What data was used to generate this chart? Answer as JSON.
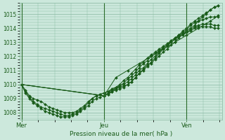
{
  "xlabel": "Pression niveau de la mer( hPa )",
  "bg_color": "#cce8dc",
  "grid_color": "#88b8a0",
  "line_color": "#1a5c1a",
  "vline_color": "#2a6c2a",
  "ylim": [
    1007.5,
    1015.8
  ],
  "yticks": [
    1008,
    1009,
    1010,
    1011,
    1012,
    1013,
    1014,
    1015
  ],
  "day_labels": [
    "Mer",
    "Jeu",
    "Ven"
  ],
  "day_positions": [
    0,
    0.42,
    0.84
  ],
  "vline_positions": [
    0,
    0.42,
    0.84
  ],
  "series": [
    {
      "x": [
        0.0,
        0.02,
        0.04,
        0.06,
        0.08,
        0.1,
        0.12,
        0.14,
        0.16,
        0.18,
        0.2,
        0.22,
        0.24,
        0.26,
        0.28,
        0.3,
        0.32,
        0.34,
        0.36,
        0.38,
        0.4,
        0.42,
        0.44,
        0.46,
        0.48,
        0.5,
        0.52,
        0.54,
        0.56,
        0.58,
        0.6,
        0.62,
        0.64,
        0.66,
        0.68,
        0.7,
        0.72,
        0.74,
        0.76,
        0.78,
        0.8,
        0.82,
        0.84,
        0.86,
        0.88,
        0.9,
        0.92,
        0.94,
        0.96,
        0.98,
        1.0
      ],
      "y": [
        1010.0,
        1009.6,
        1009.2,
        1009.0,
        1008.9,
        1008.8,
        1008.6,
        1008.4,
        1008.3,
        1008.2,
        1008.1,
        1008.0,
        1008.0,
        1008.0,
        1008.1,
        1008.3,
        1008.5,
        1008.8,
        1009.0,
        1009.2,
        1009.3,
        1009.4,
        1009.5,
        1009.6,
        1009.7,
        1009.8,
        1009.9,
        1010.0,
        1010.2,
        1010.5,
        1010.8,
        1011.1,
        1011.4,
        1011.5,
        1011.8,
        1012.0,
        1012.3,
        1012.5,
        1012.8,
        1013.0,
        1013.3,
        1013.6,
        1013.8,
        1014.0,
        1014.2,
        1014.5,
        1014.8,
        1015.0,
        1015.3,
        1015.5,
        1015.6
      ]
    },
    {
      "x": [
        0.0,
        0.02,
        0.04,
        0.06,
        0.08,
        0.1,
        0.12,
        0.14,
        0.16,
        0.18,
        0.2,
        0.22,
        0.24,
        0.26,
        0.28,
        0.3,
        0.32,
        0.34,
        0.36,
        0.38,
        0.4,
        0.42,
        0.44,
        0.46,
        0.48,
        0.5,
        0.52,
        0.54,
        0.56,
        0.58,
        0.6,
        0.62,
        0.64,
        0.66,
        0.68,
        0.7,
        0.72,
        0.74,
        0.76,
        0.78,
        0.8,
        0.82,
        0.84,
        0.86,
        0.88,
        0.9,
        0.92,
        0.94,
        0.96,
        0.98,
        1.0
      ],
      "y": [
        1010.0,
        1009.5,
        1009.1,
        1008.8,
        1008.6,
        1008.4,
        1008.3,
        1008.2,
        1008.1,
        1008.0,
        1007.9,
        1007.8,
        1007.8,
        1007.9,
        1008.0,
        1008.2,
        1008.4,
        1008.7,
        1009.0,
        1009.2,
        1009.3,
        1009.4,
        1009.5,
        1009.7,
        1009.8,
        1009.9,
        1010.0,
        1010.2,
        1010.4,
        1010.7,
        1011.0,
        1011.2,
        1011.5,
        1011.8,
        1012.0,
        1012.3,
        1012.6,
        1012.8,
        1013.1,
        1013.3,
        1013.5,
        1013.8,
        1014.0,
        1014.3,
        1014.5,
        1014.7,
        1014.9,
        1015.1,
        1015.3,
        1015.5,
        1015.6
      ]
    },
    {
      "x": [
        0.0,
        0.02,
        0.04,
        0.06,
        0.08,
        0.1,
        0.12,
        0.14,
        0.16,
        0.18,
        0.2,
        0.22,
        0.24,
        0.26,
        0.28,
        0.3,
        0.32,
        0.34,
        0.36,
        0.38,
        0.4,
        0.42,
        0.44,
        0.46,
        0.48,
        0.5,
        0.52,
        0.54,
        0.56,
        0.58,
        0.6,
        0.62,
        0.64,
        0.66,
        0.68,
        0.7,
        0.72,
        0.74,
        0.76,
        0.78,
        0.8,
        0.82,
        0.84,
        0.86,
        0.88,
        0.9,
        0.92,
        0.94,
        0.96,
        0.98,
        1.0
      ],
      "y": [
        1010.0,
        1009.4,
        1009.0,
        1008.7,
        1008.5,
        1008.3,
        1008.1,
        1008.0,
        1007.9,
        1007.8,
        1007.7,
        1007.7,
        1007.7,
        1007.8,
        1007.9,
        1008.1,
        1008.3,
        1008.5,
        1008.8,
        1009.0,
        1009.1,
        1009.2,
        1009.3,
        1009.5,
        1009.6,
        1009.7,
        1009.8,
        1010.0,
        1010.2,
        1010.5,
        1010.8,
        1011.0,
        1011.3,
        1011.6,
        1011.9,
        1012.2,
        1012.5,
        1012.7,
        1013.0,
        1013.2,
        1013.5,
        1013.7,
        1013.9,
        1014.2,
        1014.4,
        1014.5,
        1014.6,
        1014.7,
        1014.8,
        1014.8,
        1014.8
      ]
    },
    {
      "x": [
        0.0,
        0.42,
        0.44,
        0.46,
        0.48,
        0.5,
        0.52,
        0.54,
        0.56,
        0.58,
        0.6,
        0.62,
        0.64,
        0.66,
        0.68,
        0.7,
        0.72,
        0.74,
        0.76,
        0.78,
        0.8,
        0.82,
        0.84,
        0.86,
        0.88,
        0.9,
        0.92,
        0.94,
        0.96,
        0.98,
        1.0
      ],
      "y": [
        1010.0,
        1009.2,
        1009.4,
        1009.6,
        1009.8,
        1010.0,
        1010.3,
        1010.5,
        1010.8,
        1011.1,
        1011.4,
        1011.6,
        1011.9,
        1012.1,
        1012.3,
        1012.5,
        1012.7,
        1012.9,
        1013.1,
        1013.3,
        1013.5,
        1013.6,
        1013.7,
        1013.9,
        1014.1,
        1014.2,
        1014.3,
        1014.3,
        1014.3,
        1014.2,
        1014.2
      ]
    },
    {
      "x": [
        0.0,
        0.42,
        0.44,
        0.46,
        0.48,
        0.5,
        0.52,
        0.54,
        0.56,
        0.58,
        0.6,
        0.62,
        0.64,
        0.66,
        0.68,
        0.7,
        0.72,
        0.74,
        0.76,
        0.78,
        0.8,
        0.82,
        0.84,
        0.86,
        0.88,
        0.9,
        0.92,
        0.94,
        0.96,
        0.98,
        1.0
      ],
      "y": [
        1010.0,
        1009.2,
        1009.3,
        1009.5,
        1009.7,
        1009.9,
        1010.1,
        1010.4,
        1010.6,
        1010.9,
        1011.2,
        1011.5,
        1011.7,
        1012.0,
        1012.2,
        1012.4,
        1012.6,
        1012.8,
        1013.0,
        1013.2,
        1013.4,
        1013.5,
        1013.7,
        1013.8,
        1014.0,
        1014.1,
        1014.1,
        1014.1,
        1014.1,
        1014.0,
        1014.0
      ]
    },
    {
      "x": [
        0.0,
        0.42,
        0.48,
        0.54,
        0.6,
        0.66,
        0.72,
        0.78,
        0.84,
        0.9,
        0.96,
        1.0
      ],
      "y": [
        1010.0,
        1009.2,
        1010.5,
        1011.0,
        1011.5,
        1012.0,
        1012.5,
        1013.0,
        1013.5,
        1014.0,
        1014.5,
        1014.9
      ]
    }
  ]
}
